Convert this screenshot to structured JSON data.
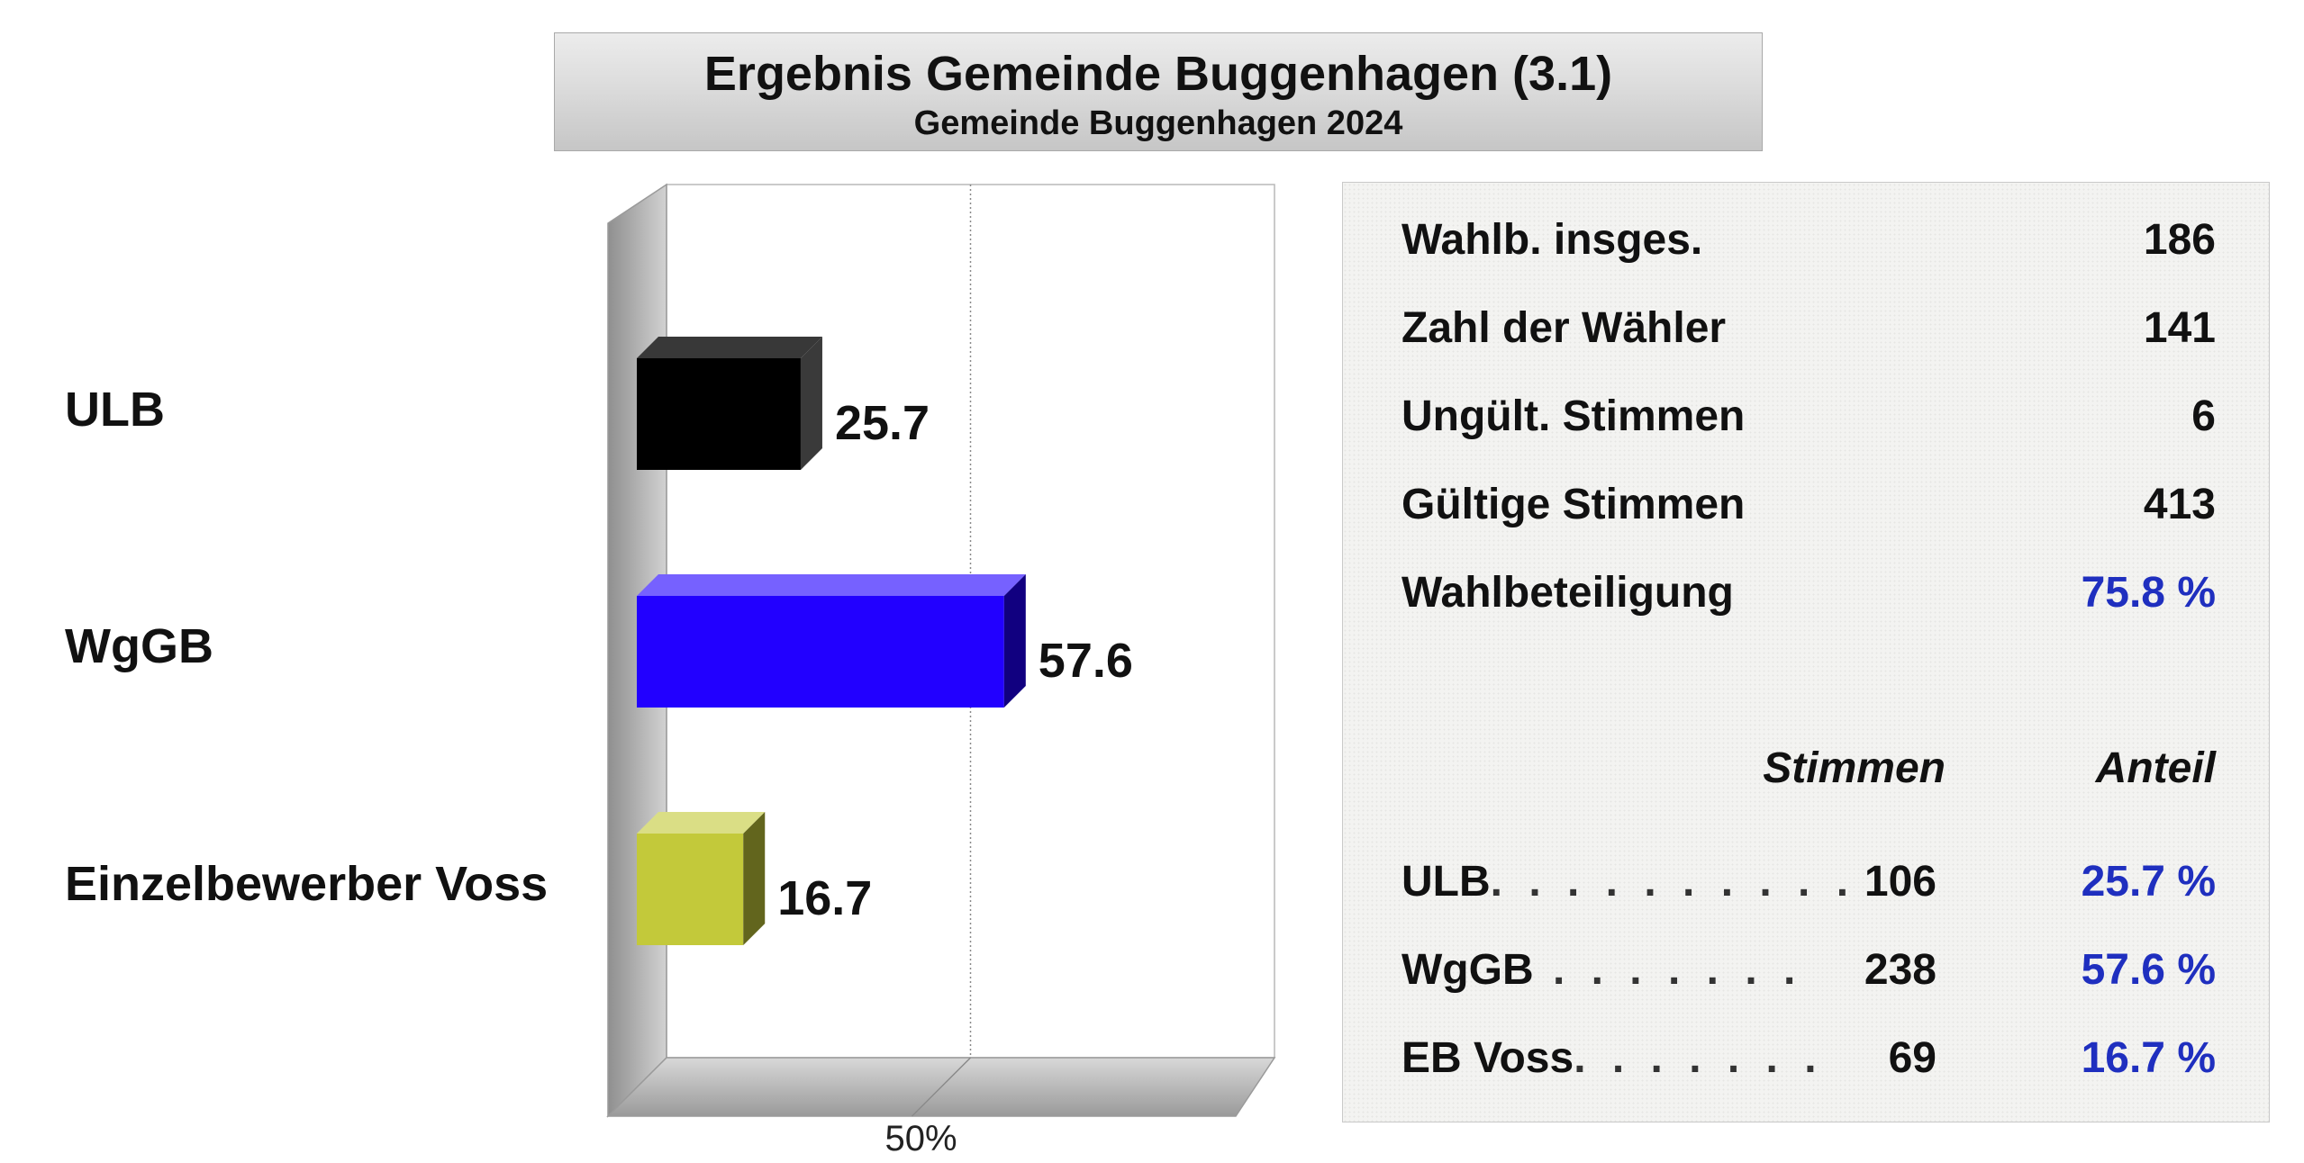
{
  "title": "Ergebnis Gemeinde Buggenhagen (3.1)",
  "subtitle": "Gemeinde Buggenhagen 2024",
  "chart_data": {
    "type": "bar",
    "orientation": "horizontal",
    "style": "3d",
    "categories": [
      "ULB",
      "WgGB",
      "Einzelbewerber Voss"
    ],
    "values": [
      25.7,
      57.6,
      16.7
    ],
    "value_labels": [
      "25.7",
      "57.6",
      "16.7"
    ],
    "colors": [
      "#000000",
      "#2200ff",
      "#c3c93a"
    ],
    "xlim": [
      0,
      100
    ],
    "x_tick_labels": [
      "50%"
    ],
    "grid": "vertical dotted line at 50%"
  },
  "stats": [
    {
      "label": "Wahlb. insges.",
      "value": "186"
    },
    {
      "label": "Zahl der Wähler",
      "value": "141"
    },
    {
      "label": "Ungült. Stimmen",
      "value": "6"
    },
    {
      "label": "Gültige Stimmen",
      "value": "413"
    },
    {
      "label": "Wahlbeteiligung",
      "value": "75.8 %",
      "accent": true
    }
  ],
  "table": {
    "header_votes": "Stimmen",
    "header_share": "Anteil",
    "rows": [
      {
        "name": "ULB",
        "dots": ". . . . . . . . . .",
        "votes": "106",
        "share": "25.7 %"
      },
      {
        "name": "WgGB",
        "dots": " . . . . . . .",
        "votes": "238",
        "share": "57.6 %"
      },
      {
        "name": "EB Voss",
        "dots": ". . . . . . .",
        "votes": "69",
        "share": "16.7 %"
      }
    ]
  },
  "colors": {
    "accent_blue": "#1f2fbf"
  }
}
